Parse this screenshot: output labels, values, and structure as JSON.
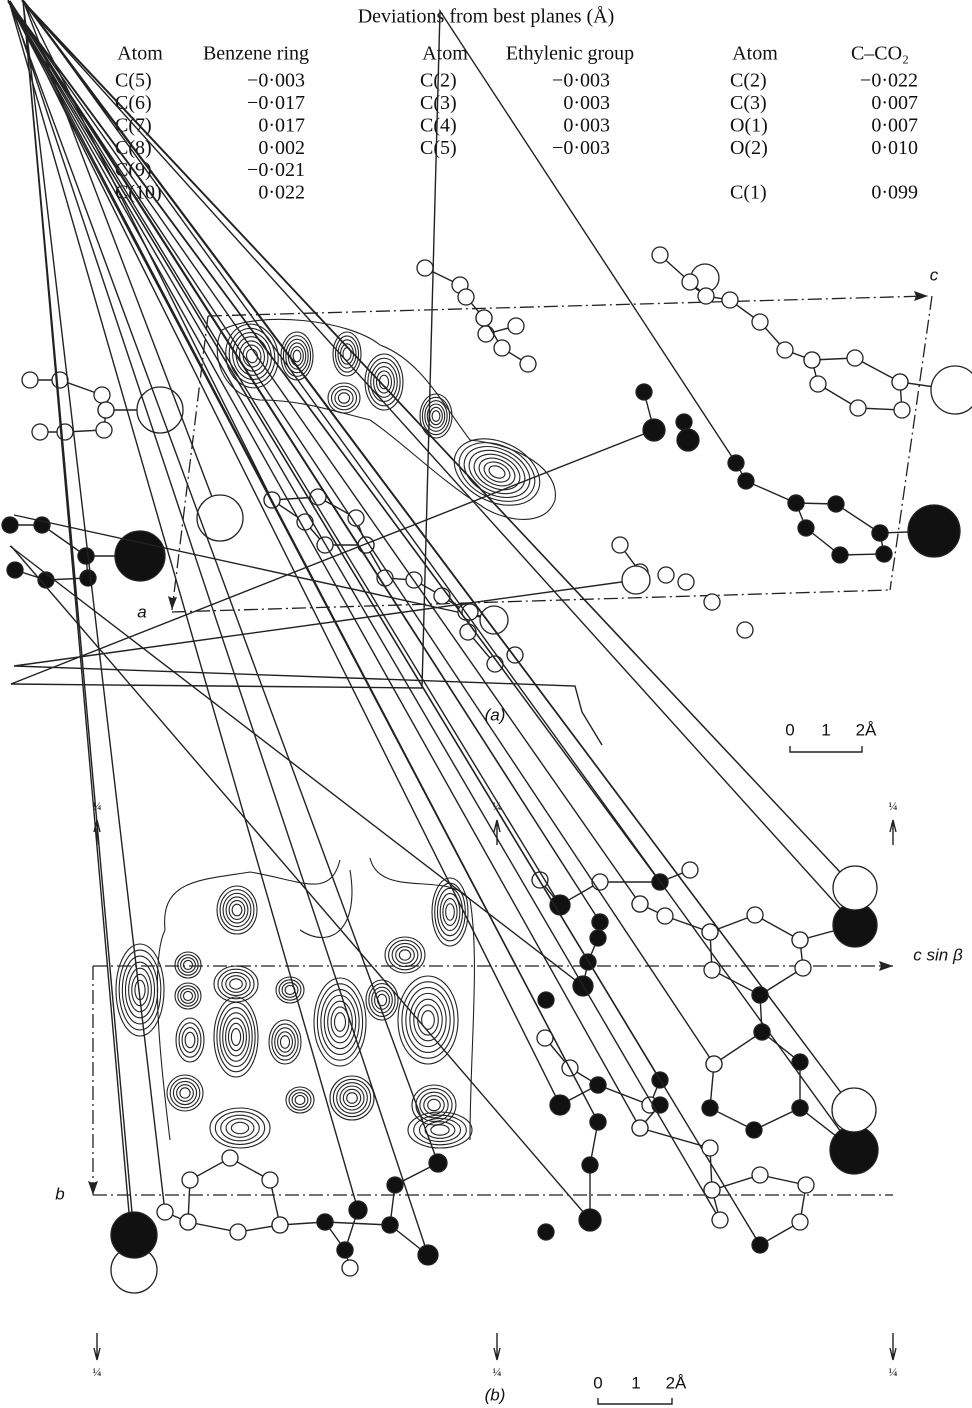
{
  "table": {
    "title": "Deviations from best planes (Å)",
    "groups": [
      {
        "headers": [
          "Atom",
          "Benzene ring"
        ],
        "rows": [
          [
            "C(5)",
            "−0·003"
          ],
          [
            "C(6)",
            "−0·017"
          ],
          [
            "C(7)",
            "0·017"
          ],
          [
            "C(8)",
            "0·002"
          ],
          [
            "C(9)",
            "−0·021"
          ],
          [
            "C(10)",
            "0·022"
          ]
        ]
      },
      {
        "headers": [
          "Atom",
          "Ethylenic group"
        ],
        "rows": [
          [
            "C(2)",
            "−0·003"
          ],
          [
            "C(3)",
            "0·003"
          ],
          [
            "C(4)",
            "0·003"
          ],
          [
            "C(5)",
            "−0·003"
          ]
        ]
      },
      {
        "headers": [
          "Atom",
          "C–CO₂"
        ],
        "rows": [
          [
            "C(2)",
            "−0·022"
          ],
          [
            "C(3)",
            "0·007"
          ],
          [
            "O(1)",
            "0·007"
          ],
          [
            "O(2)",
            "0·010"
          ]
        ]
      }
    ],
    "extra_row": [
      "C(1)",
      "0·099"
    ]
  },
  "figure_a": {
    "axis_labels": [
      "c",
      "a"
    ],
    "caption": "(a)",
    "scale": [
      "0",
      "1",
      "2Å"
    ]
  },
  "figure_b": {
    "axis_labels": [
      "c sin β",
      "b"
    ],
    "caption": "(b)",
    "scale": [
      "0",
      "1",
      "2Å"
    ],
    "quarter_marks": [
      "¼",
      "¼",
      "¼",
      "¼",
      "¼",
      "¼"
    ]
  }
}
